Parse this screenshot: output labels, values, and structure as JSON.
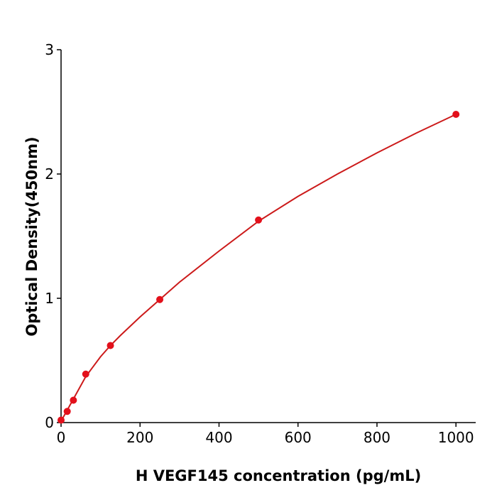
{
  "chart_data": {
    "type": "scatter",
    "x_label": "H  VEGF145 concentration (pg/mL)",
    "y_label": "Optical Density(450nm)",
    "series": [
      {
        "type": "scatter",
        "color": "#e3101b",
        "x": [
          0,
          15.6,
          31.25,
          62.5,
          125,
          250,
          500,
          1000
        ],
        "values": [
          0.02,
          0.09,
          0.18,
          0.39,
          0.62,
          0.99,
          1.63,
          2.48
        ]
      },
      {
        "type": "line",
        "color": "#cc1a1a",
        "x": [
          0,
          5,
          15.6,
          31.25,
          62.5,
          100,
          125,
          150,
          200,
          250,
          300,
          400,
          500,
          600,
          700,
          800,
          900,
          1000
        ],
        "values": [
          0,
          0.04,
          0.1,
          0.19,
          0.37,
          0.53,
          0.62,
          0.7,
          0.85,
          0.99,
          1.13,
          1.38,
          1.62,
          1.82,
          2.0,
          2.17,
          2.33,
          2.48
        ]
      }
    ],
    "xlim": [
      0,
      1050
    ],
    "xticks": [
      0,
      200,
      400,
      600,
      800,
      1000
    ],
    "ylim": [
      0,
      3
    ],
    "yticks": [
      0,
      1,
      2,
      3
    ],
    "grid": false
  }
}
